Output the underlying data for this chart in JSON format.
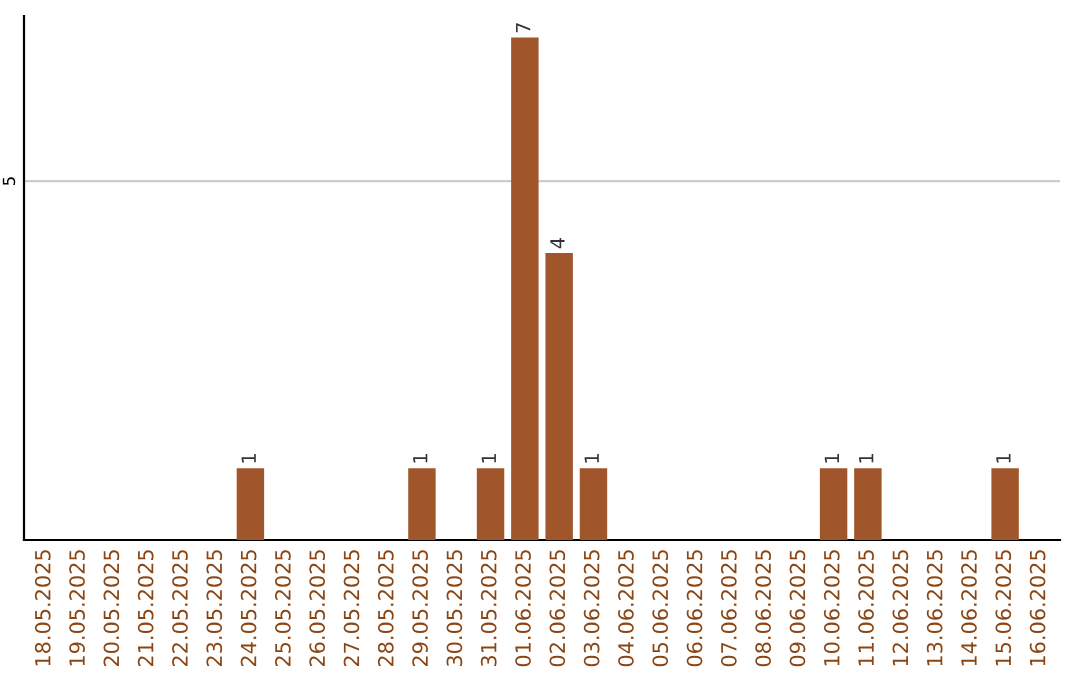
{
  "chart_data": {
    "type": "bar",
    "categories": [
      "18.05.2025",
      "19.05.2025",
      "20.05.2025",
      "21.05.2025",
      "22.05.2025",
      "23.05.2025",
      "24.05.2025",
      "25.05.2025",
      "26.05.2025",
      "27.05.2025",
      "28.05.2025",
      "29.05.2025",
      "30.05.2025",
      "31.05.2025",
      "01.06.2025",
      "02.06.2025",
      "03.06.2025",
      "04.06.2025",
      "05.06.2025",
      "06.06.2025",
      "07.06.2025",
      "08.06.2025",
      "09.06.2025",
      "10.06.2025",
      "11.06.2025",
      "12.06.2025",
      "13.06.2025",
      "14.06.2025",
      "15.06.2025",
      "16.06.2025"
    ],
    "values": [
      0,
      0,
      0,
      0,
      0,
      0,
      1,
      0,
      0,
      0,
      0,
      1,
      0,
      1,
      7,
      4,
      1,
      0,
      0,
      0,
      0,
      0,
      0,
      1,
      1,
      0,
      0,
      0,
      1,
      0
    ],
    "color": "#a0562a",
    "value_labels": [
      null,
      null,
      null,
      null,
      null,
      null,
      "1",
      null,
      null,
      null,
      null,
      "1",
      null,
      "1",
      "7",
      "4",
      "1",
      null,
      null,
      null,
      null,
      null,
      null,
      "1",
      "1",
      null,
      null,
      null,
      "1",
      null
    ],
    "ylim": [
      0,
      7.3
    ],
    "yticks": [
      5
    ],
    "grid": "y"
  }
}
